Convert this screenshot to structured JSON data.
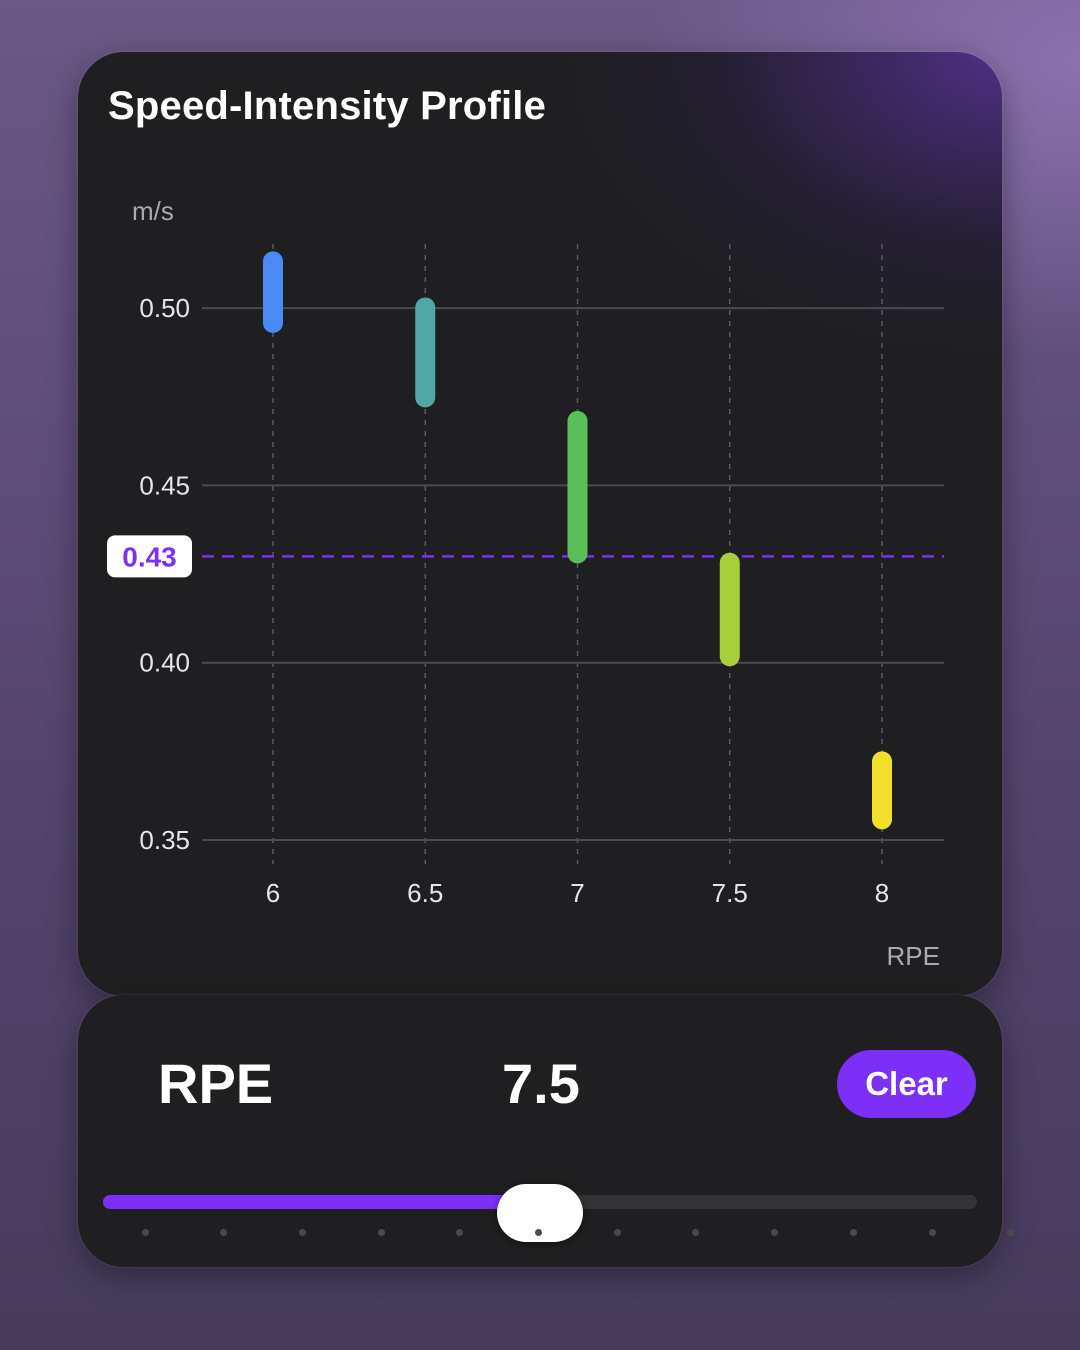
{
  "card": {
    "title": "Speed-Intensity Profile"
  },
  "chart_data": {
    "type": "range-bar",
    "title": "Speed-Intensity Profile",
    "ylabel": "m/s",
    "xlabel": "RPE",
    "ylim": [
      0.35,
      0.52
    ],
    "yticks": [
      0.5,
      0.45,
      0.4,
      0.35
    ],
    "ytick_labels": [
      "0.50",
      "0.45",
      "0.40",
      "0.35"
    ],
    "categories": [
      "6",
      "6.5",
      "7",
      "7.5",
      "8"
    ],
    "ranges": [
      {
        "x": "6",
        "low": 0.493,
        "high": 0.516,
        "color": "#4a8af4"
      },
      {
        "x": "6.5",
        "low": 0.472,
        "high": 0.503,
        "color": "#4fa8a6"
      },
      {
        "x": "7",
        "low": 0.428,
        "high": 0.471,
        "color": "#59bf59"
      },
      {
        "x": "7.5",
        "low": 0.399,
        "high": 0.431,
        "color": "#a7cf3a"
      },
      {
        "x": "8",
        "low": 0.353,
        "high": 0.375,
        "color": "#f1df2a"
      }
    ],
    "reference_line": {
      "value": 0.43,
      "label": "0.43",
      "color": "#7b2ff7"
    },
    "grid": true
  },
  "controls": {
    "rpe_label": "RPE",
    "rpe_value": "7.5",
    "clear_label": "Clear",
    "slider": {
      "value": 7.5,
      "fill_fraction": 0.5,
      "steps": 12
    }
  },
  "colors": {
    "accent": "#7b2ff7",
    "card_bg": "#1f1f21"
  }
}
